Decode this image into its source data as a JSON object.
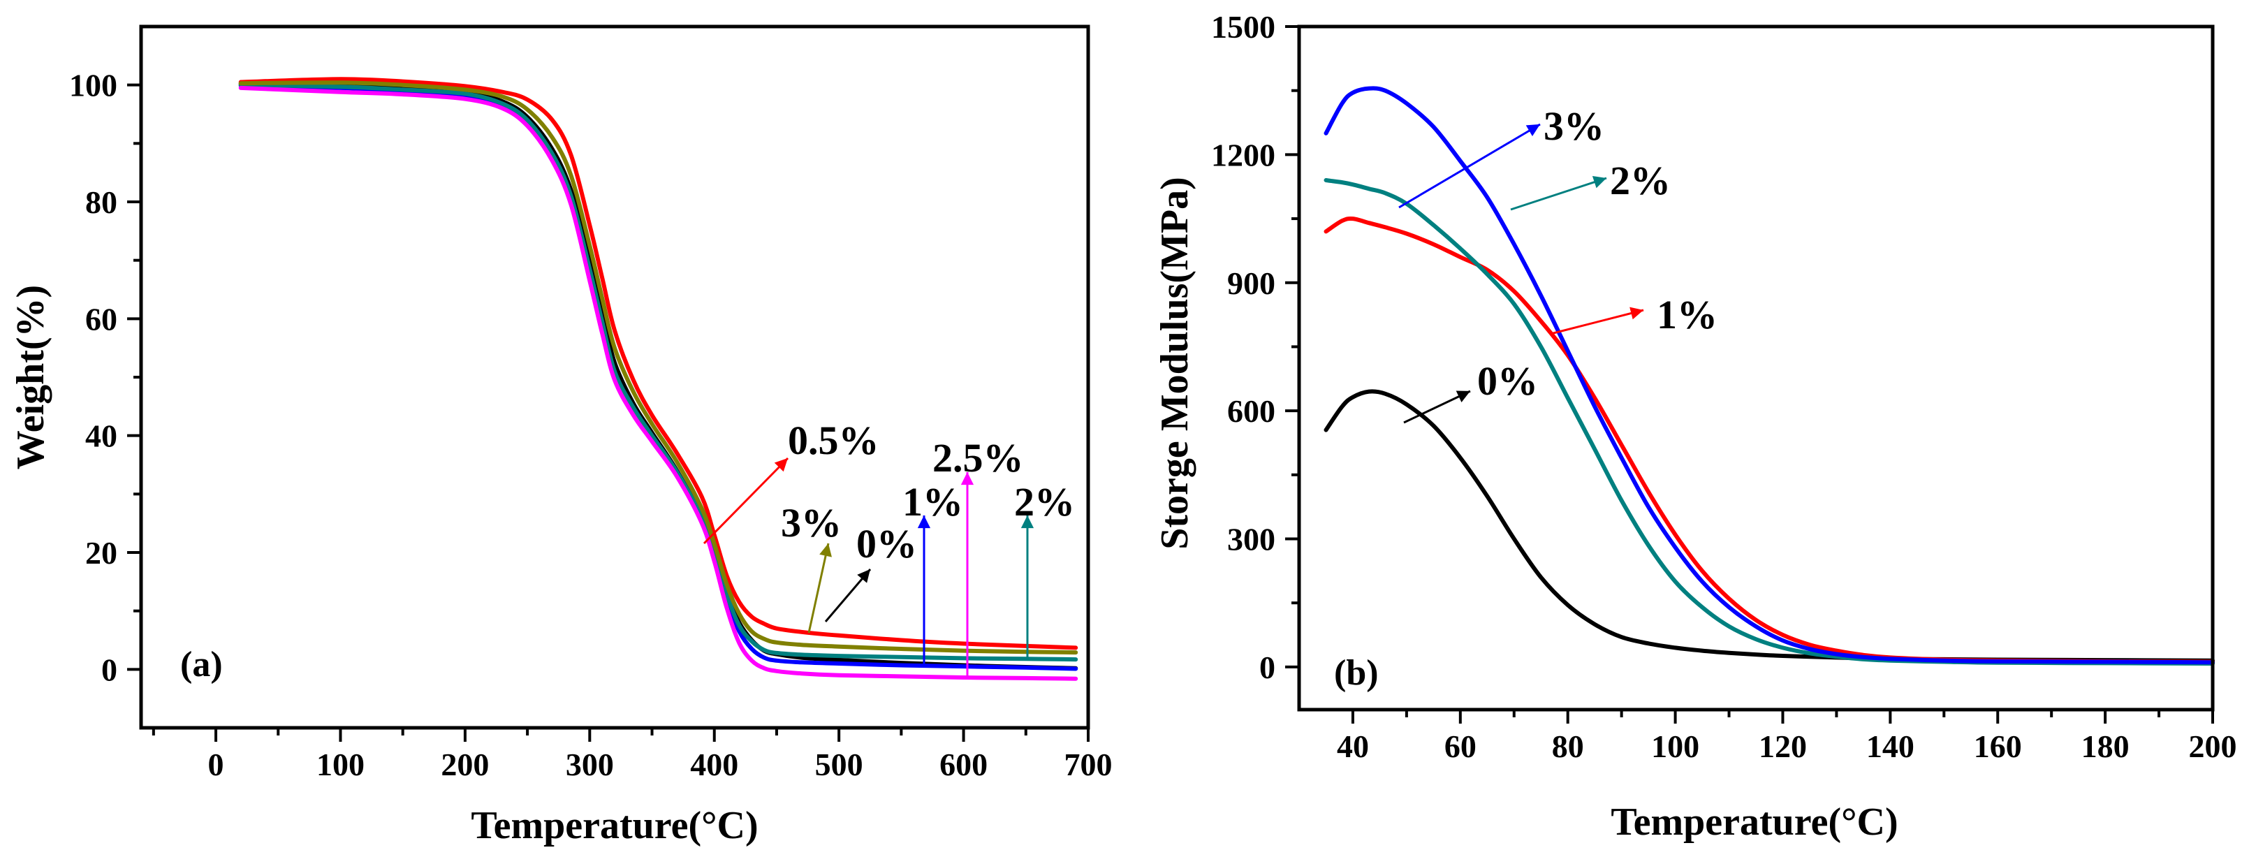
{
  "chart_data": [
    {
      "panel": "a",
      "type": "line",
      "panel_label": "(a)",
      "xlabel": "Temperature(°C)",
      "ylabel": "Weight(%)",
      "xlim": [
        -60,
        700
      ],
      "ylim": [
        -10,
        110
      ],
      "xticks": [
        0,
        100,
        200,
        300,
        400,
        500,
        600,
        700
      ],
      "yticks": [
        0,
        20,
        40,
        60,
        80,
        100
      ],
      "x": [
        20,
        100,
        150,
        200,
        230,
        250,
        270,
        285,
        300,
        310,
        320,
        335,
        350,
        370,
        390,
        400,
        410,
        420,
        430,
        440,
        450,
        470,
        500,
        550,
        600,
        650,
        690
      ],
      "series": [
        {
          "name": "0%",
          "color": "#000000",
          "values": [
            100.2,
            100.0,
            99.6,
            98.8,
            97.2,
            94.5,
            89.0,
            82.0,
            70.0,
            61.0,
            52.5,
            45.5,
            40.5,
            34.0,
            26.0,
            20.0,
            13.0,
            8.0,
            5.0,
            3.2,
            2.6,
            2.0,
            1.6,
            1.1,
            0.7,
            0.4,
            0.2
          ]
        },
        {
          "name": "0.5%",
          "color": "#ff0000",
          "values": [
            100.5,
            101.0,
            100.6,
            99.8,
            98.8,
            97.5,
            94.0,
            88.0,
            76.0,
            67.0,
            58.0,
            49.5,
            43.5,
            37.0,
            29.5,
            23.0,
            16.0,
            11.5,
            9.0,
            7.8,
            7.0,
            6.4,
            5.8,
            5.0,
            4.4,
            4.0,
            3.7
          ]
        },
        {
          "name": "1%",
          "color": "#0000ff",
          "values": [
            99.9,
            99.5,
            99.0,
            98.3,
            96.5,
            93.5,
            87.5,
            80.0,
            67.0,
            58.0,
            50.0,
            44.0,
            39.5,
            33.5,
            25.5,
            19.5,
            12.0,
            6.5,
            3.5,
            2.0,
            1.5,
            1.2,
            1.0,
            0.7,
            0.5,
            0.3,
            0.1
          ]
        },
        {
          "name": "2%",
          "color": "#008080",
          "values": [
            100.0,
            99.7,
            99.2,
            98.5,
            96.8,
            94.0,
            88.2,
            81.0,
            68.5,
            59.5,
            51.0,
            44.8,
            40.0,
            33.8,
            26.0,
            20.0,
            12.8,
            7.5,
            4.8,
            3.3,
            2.8,
            2.5,
            2.3,
            2.1,
            1.9,
            1.8,
            1.7
          ]
        },
        {
          "name": "2.5%",
          "color": "#ff00ff",
          "values": [
            99.5,
            98.8,
            98.4,
            97.6,
            96.0,
            93.0,
            87.0,
            79.5,
            66.5,
            57.5,
            49.5,
            43.5,
            39.0,
            33.0,
            25.0,
            18.5,
            10.5,
            4.5,
            1.5,
            0.2,
            -0.3,
            -0.7,
            -1.0,
            -1.2,
            -1.4,
            -1.5,
            -1.6
          ]
        },
        {
          "name": "3%",
          "color": "#808000",
          "values": [
            100.3,
            100.4,
            100.0,
            99.2,
            98.0,
            95.8,
            91.0,
            84.5,
            72.5,
            63.5,
            55.0,
            47.5,
            42.0,
            35.5,
            27.5,
            21.5,
            14.5,
            9.5,
            6.5,
            5.2,
            4.6,
            4.2,
            3.9,
            3.5,
            3.2,
            3.0,
            2.9
          ]
        }
      ],
      "annotations": [
        {
          "text": "0.5%",
          "series": "0.5%"
        },
        {
          "text": "3%",
          "series": "3%"
        },
        {
          "text": "0%",
          "series": "0%"
        },
        {
          "text": "1%",
          "series": "1%"
        },
        {
          "text": "2.5%",
          "series": "2.5%"
        },
        {
          "text": "2%",
          "series": "2%"
        }
      ]
    },
    {
      "panel": "b",
      "type": "line",
      "panel_label": "(b)",
      "xlabel": "Temperature(°C)",
      "ylabel": "Storge Modulus(MPa)",
      "xlim": [
        30,
        200
      ],
      "ylim": [
        -100,
        1500
      ],
      "xticks": [
        40,
        60,
        80,
        100,
        120,
        140,
        160,
        180,
        200
      ],
      "yticks": [
        0,
        300,
        600,
        900,
        1200,
        1500
      ],
      "x": [
        35,
        38,
        40,
        43,
        46,
        50,
        55,
        60,
        65,
        70,
        75,
        80,
        85,
        90,
        95,
        100,
        105,
        110,
        115,
        120,
        125,
        130,
        135,
        140,
        150,
        160,
        180,
        200
      ],
      "series": [
        {
          "name": "0%",
          "color": "#000000",
          "values": [
            555,
            610,
            632,
            645,
            640,
            615,
            565,
            490,
            400,
            300,
            210,
            145,
            100,
            70,
            55,
            45,
            38,
            33,
            29,
            26,
            24,
            22,
            20,
            19,
            18,
            17,
            16,
            15
          ]
        },
        {
          "name": "1%",
          "color": "#ff0000",
          "values": [
            1020,
            1045,
            1050,
            1040,
            1030,
            1015,
            990,
            960,
            930,
            880,
            810,
            730,
            630,
            520,
            410,
            310,
            225,
            160,
            110,
            75,
            52,
            38,
            28,
            22,
            17,
            15,
            13,
            12
          ]
        },
        {
          "name": "2%",
          "color": "#008080",
          "values": [
            1140,
            1135,
            1130,
            1120,
            1110,
            1085,
            1035,
            980,
            920,
            850,
            750,
            630,
            510,
            390,
            285,
            200,
            140,
            95,
            65,
            45,
            32,
            24,
            18,
            15,
            12,
            10,
            9,
            8
          ]
        },
        {
          "name": "3%",
          "color": "#0000ff",
          "values": [
            1250,
            1320,
            1345,
            1355,
            1350,
            1320,
            1265,
            1185,
            1100,
            990,
            870,
            740,
            610,
            490,
            375,
            280,
            200,
            140,
            95,
            62,
            42,
            30,
            23,
            19,
            15,
            13,
            12,
            11
          ]
        }
      ],
      "annotations": [
        {
          "text": "3%",
          "series": "3%"
        },
        {
          "text": "2%",
          "series": "2%"
        },
        {
          "text": "1%",
          "series": "1%"
        },
        {
          "text": "0%",
          "series": "0%"
        }
      ]
    }
  ]
}
